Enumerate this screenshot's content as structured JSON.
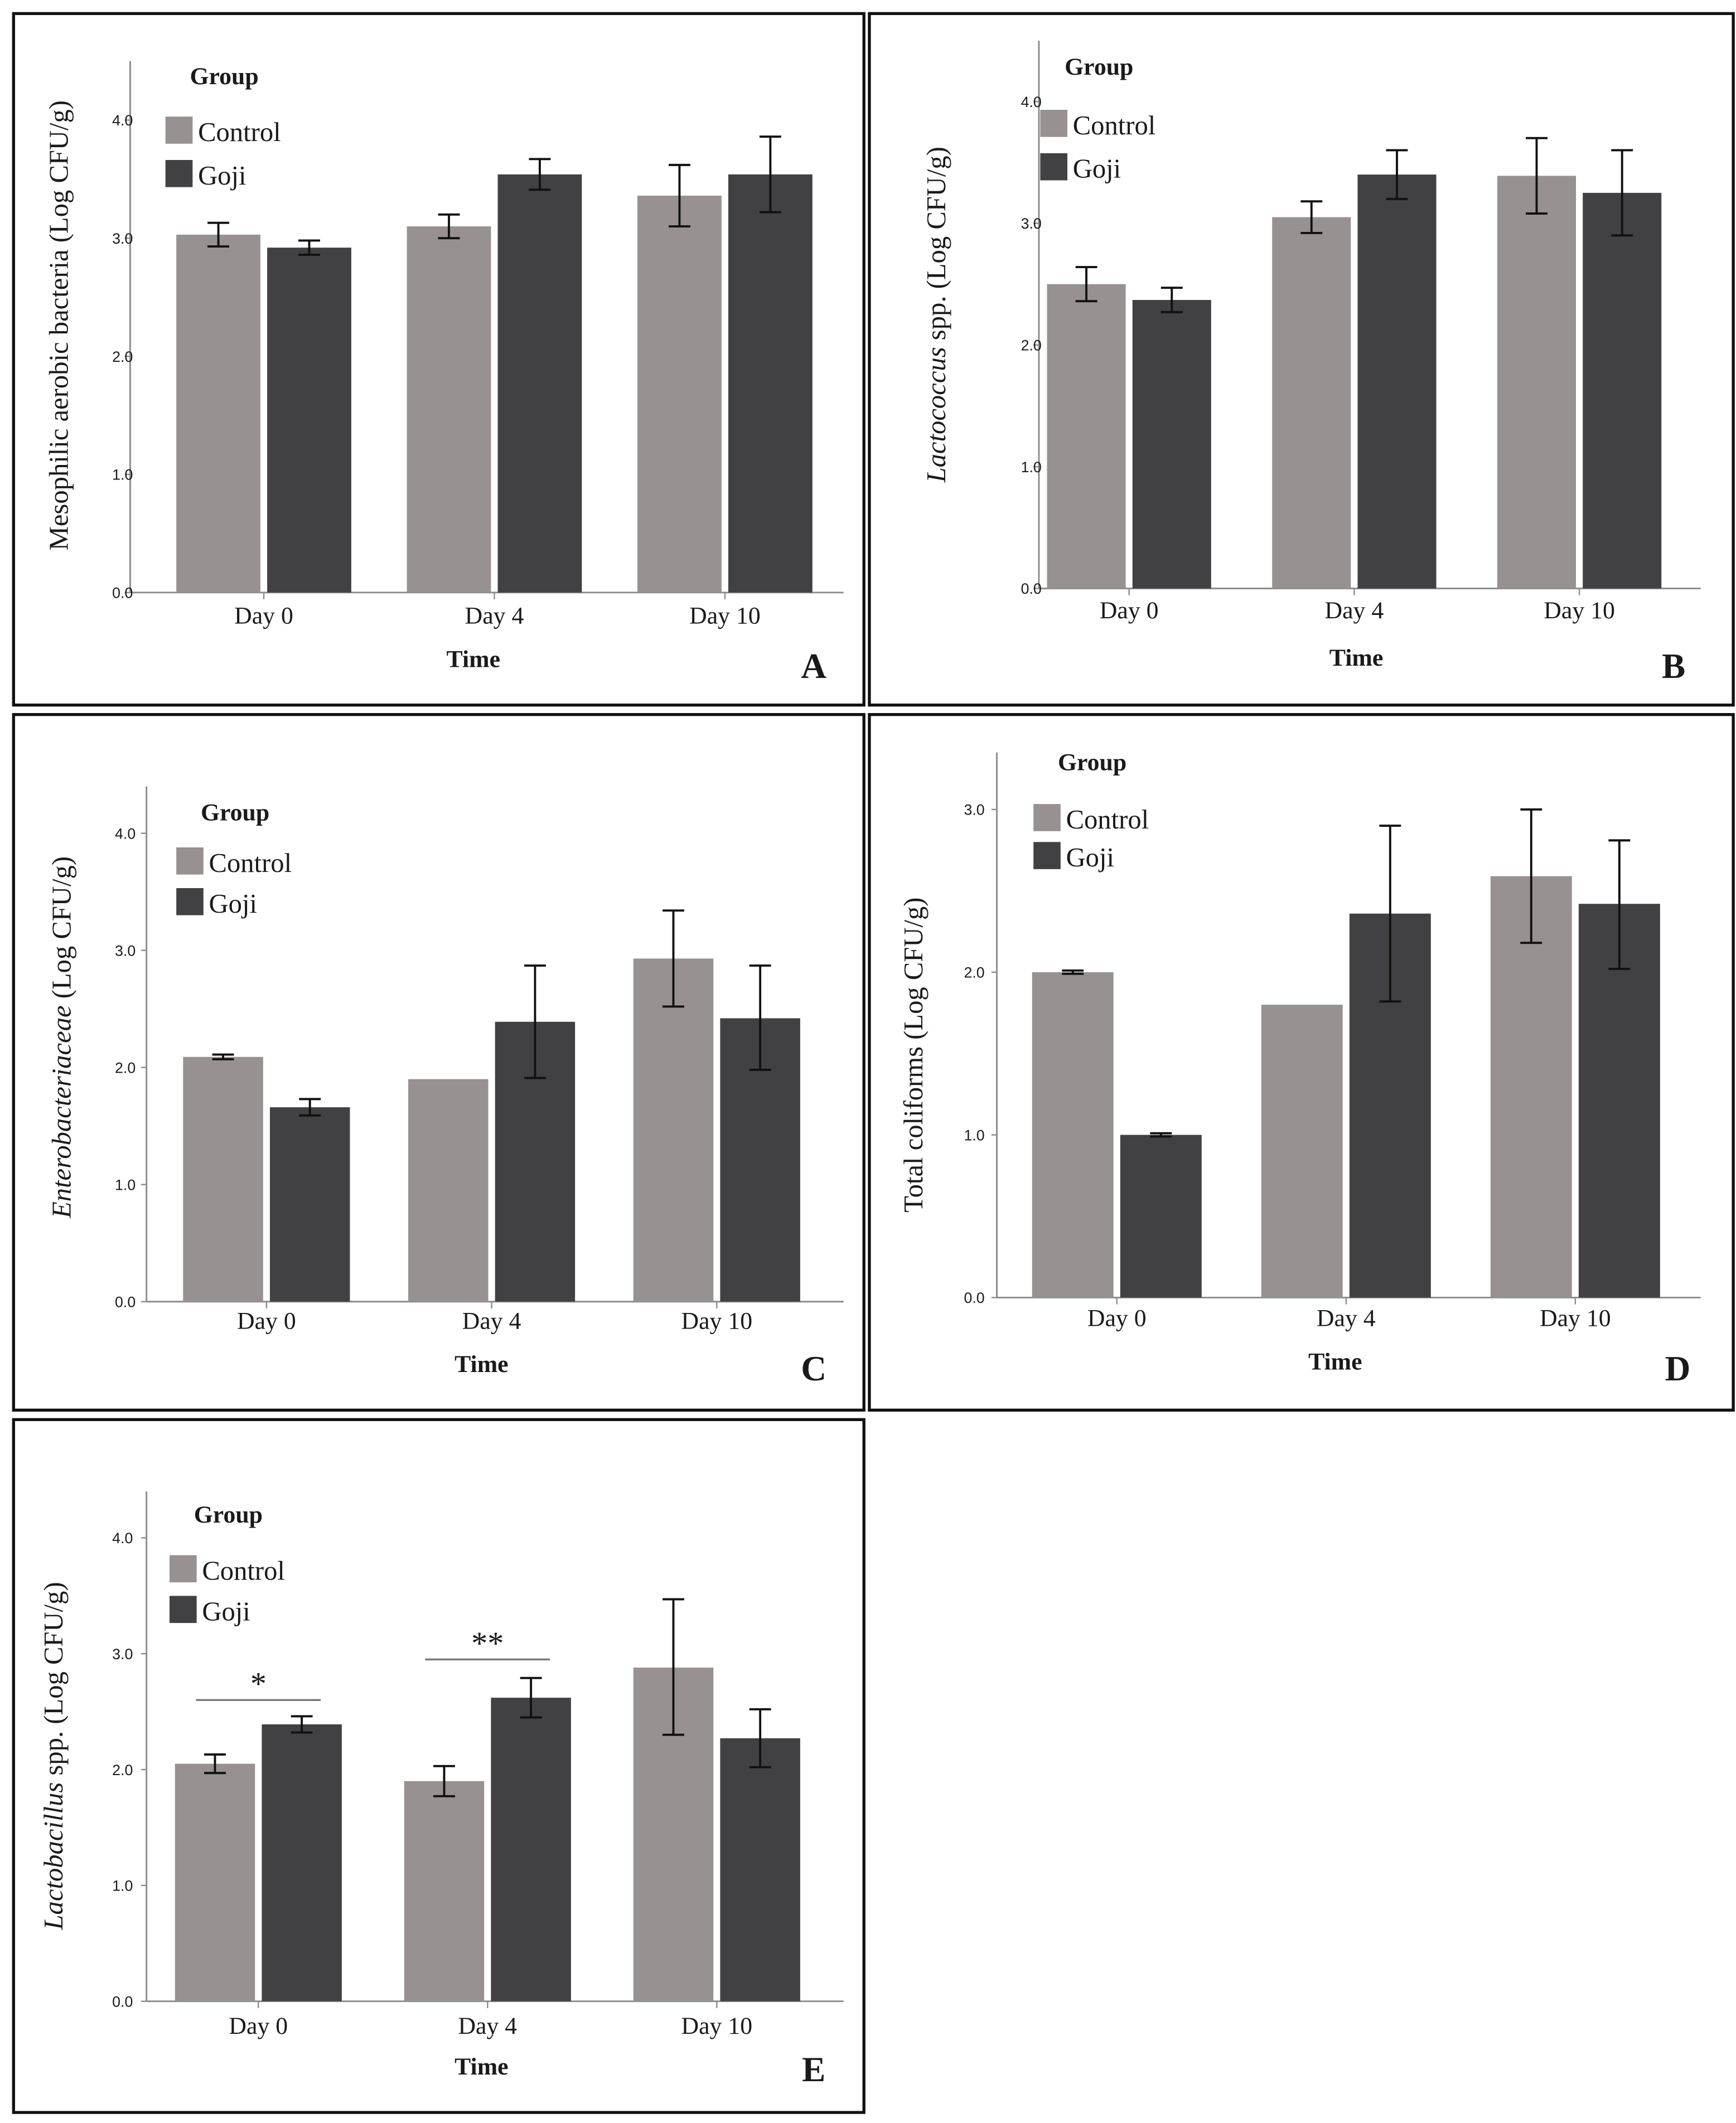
{
  "colors": {
    "control": "#979191",
    "goji": "#414143",
    "axis": "#8c8c8c",
    "frame": "#111111",
    "text": "#1a1a1a"
  },
  "chart_data": [
    {
      "panel": "A",
      "type": "bar",
      "categories": [
        "Day 0",
        "Day 4",
        "Day 10"
      ],
      "xlabel": "Time",
      "ylabel": "Mesophilic aerobic bacteria (Log CFU/g)",
      "ylabel_italic": "",
      "ylim": [
        0,
        4.5
      ],
      "yticks": [
        "0.0",
        "1.0",
        "2.0",
        "3.0",
        "4.0"
      ],
      "legend_title": "Group",
      "legend_position": "top-left",
      "grid": false,
      "series": [
        {
          "name": "Control",
          "values": [
            3.03,
            3.1,
            3.36
          ],
          "err_low": [
            2.93,
            3.0,
            3.1
          ],
          "err_high": [
            3.13,
            3.2,
            3.62
          ]
        },
        {
          "name": "Goji",
          "values": [
            2.92,
            3.54,
            3.54
          ],
          "err_low": [
            2.86,
            3.41,
            3.22
          ],
          "err_high": [
            2.98,
            3.67,
            3.86
          ]
        }
      ],
      "annotations": []
    },
    {
      "panel": "B",
      "type": "bar",
      "categories": [
        "Day 0",
        "Day 4",
        "Day 10"
      ],
      "xlabel": "Time",
      "ylabel": " spp. (Log CFU/g)",
      "ylabel_italic": "Lactococcus",
      "ylim": [
        0,
        4.5
      ],
      "yticks": [
        "0.0",
        "1.0",
        "2.0",
        "3.0",
        "4.0"
      ],
      "legend_title": "Group",
      "legend_position": "top-left",
      "grid": false,
      "series": [
        {
          "name": "Control",
          "values": [
            2.5,
            3.05,
            3.39
          ],
          "err_low": [
            2.36,
            2.92,
            3.08
          ],
          "err_high": [
            2.64,
            3.18,
            3.7
          ]
        },
        {
          "name": "Goji",
          "values": [
            2.37,
            3.4,
            3.25
          ],
          "err_low": [
            2.27,
            3.2,
            2.9
          ],
          "err_high": [
            2.47,
            3.6,
            3.6
          ]
        }
      ],
      "annotations": []
    },
    {
      "panel": "C",
      "type": "bar",
      "categories": [
        "Day 0",
        "Day 4",
        "Day 10"
      ],
      "xlabel": "Time",
      "ylabel": " (Log CFU/g)",
      "ylabel_italic": "Enterobacteriaceae",
      "ylim": [
        0,
        4.4
      ],
      "yticks": [
        "0.0",
        "1.0",
        "2.0",
        "3.0",
        "4.0"
      ],
      "legend_title": "Group",
      "legend_position": "top-left",
      "grid": false,
      "series": [
        {
          "name": "Control",
          "values": [
            2.09,
            1.9,
            2.93
          ],
          "err_low": [
            2.07,
            null,
            2.52
          ],
          "err_high": [
            2.11,
            null,
            3.34
          ]
        },
        {
          "name": "Goji",
          "values": [
            1.66,
            2.39,
            2.42
          ],
          "err_low": [
            1.59,
            1.91,
            1.98
          ],
          "err_high": [
            1.73,
            2.87,
            2.87
          ]
        }
      ],
      "annotations": []
    },
    {
      "panel": "D",
      "type": "bar",
      "categories": [
        "Day 0",
        "Day 4",
        "Day 10"
      ],
      "xlabel": "Time",
      "ylabel": "Total coliforms (Log CFU/g)",
      "ylabel_italic": "",
      "ylim": [
        0,
        3.35
      ],
      "yticks": [
        "0.0",
        "1.0",
        "2.0",
        "3.0"
      ],
      "legend_title": "Group",
      "legend_position": "top-left",
      "grid": false,
      "series": [
        {
          "name": "Control",
          "values": [
            2.0,
            1.8,
            2.59
          ],
          "err_low": [
            1.99,
            null,
            2.18
          ],
          "err_high": [
            2.01,
            null,
            3.0
          ]
        },
        {
          "name": "Goji",
          "values": [
            1.0,
            2.36,
            2.42
          ],
          "err_low": [
            0.99,
            1.82,
            2.02
          ],
          "err_high": [
            1.01,
            2.9,
            2.81
          ]
        }
      ],
      "annotations": []
    },
    {
      "panel": "E",
      "type": "bar",
      "categories": [
        "Day 0",
        "Day 4",
        "Day 10"
      ],
      "xlabel": "Time",
      "ylabel": " spp. (Log CFU/g)",
      "ylabel_italic": "Lactobacillus",
      "ylim": [
        0,
        4.4
      ],
      "yticks": [
        "0.0",
        "1.0",
        "2.0",
        "3.0",
        "4.0"
      ],
      "legend_title": "Group",
      "legend_position": "top-left",
      "grid": false,
      "series": [
        {
          "name": "Control",
          "values": [
            2.05,
            1.9,
            2.88
          ],
          "err_low": [
            1.97,
            1.77,
            2.3
          ],
          "err_high": [
            2.13,
            2.03,
            3.47
          ]
        },
        {
          "name": "Goji",
          "values": [
            2.39,
            2.62,
            2.27
          ],
          "err_low": [
            2.32,
            2.45,
            2.02
          ],
          "err_high": [
            2.46,
            2.79,
            2.52
          ]
        }
      ],
      "annotations": [
        {
          "category": "Day 0",
          "label": "*",
          "value": 2.6
        },
        {
          "category": "Day 4",
          "label": "**",
          "value": 2.95
        }
      ]
    }
  ]
}
